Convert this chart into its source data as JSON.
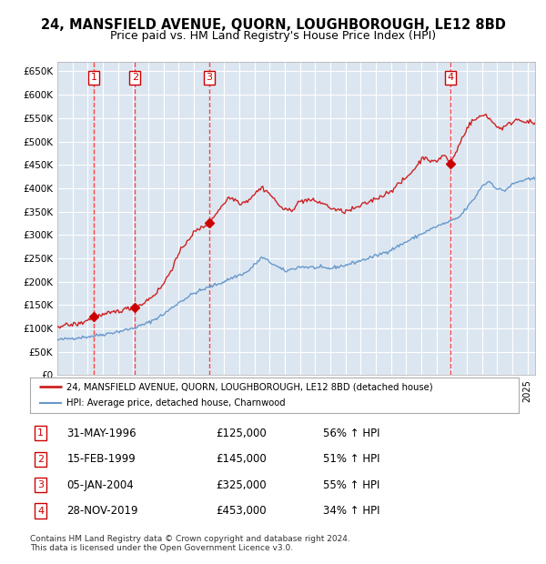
{
  "title": "24, MANSFIELD AVENUE, QUORN, LOUGHBOROUGH, LE12 8BD",
  "subtitle": "Price paid vs. HM Land Registry's House Price Index (HPI)",
  "ylim": [
    0,
    670000
  ],
  "yticks": [
    0,
    50000,
    100000,
    150000,
    200000,
    250000,
    300000,
    350000,
    400000,
    450000,
    500000,
    550000,
    600000,
    650000
  ],
  "ytick_labels": [
    "£0",
    "£50K",
    "£100K",
    "£150K",
    "£200K",
    "£250K",
    "£300K",
    "£350K",
    "£400K",
    "£450K",
    "£500K",
    "£550K",
    "£600K",
    "£650K"
  ],
  "plot_bg_color": "#dce6f1",
  "grid_color": "#ffffff",
  "hpi_color": "#6699cc",
  "price_color": "#cc2222",
  "sale_marker_color": "#cc0000",
  "vline_color": "#ff4444",
  "sales": [
    {
      "num": 1,
      "date": "1996-05-31",
      "price": 125000,
      "pct": "56%",
      "x": 1996.416
    },
    {
      "num": 2,
      "date": "1999-02-15",
      "price": 145000,
      "pct": "51%",
      "x": 1999.125
    },
    {
      "num": 3,
      "date": "2004-01-05",
      "price": 325000,
      "pct": "55%",
      "x": 2004.014
    },
    {
      "num": 4,
      "date": "2019-11-28",
      "price": 453000,
      "pct": "34%",
      "x": 2019.906
    }
  ],
  "legend_label_price": "24, MANSFIELD AVENUE, QUORN, LOUGHBOROUGH, LE12 8BD (detached house)",
  "legend_label_hpi": "HPI: Average price, detached house, Charnwood",
  "footnote": "Contains HM Land Registry data © Crown copyright and database right 2024.\nThis data is licensed under the Open Government Licence v3.0.",
  "xmin": 1994.0,
  "xmax": 2025.5,
  "hpi_anchors": [
    [
      1994.0,
      75000
    ],
    [
      1995.0,
      79000
    ],
    [
      1996.0,
      82000
    ],
    [
      1997.0,
      87000
    ],
    [
      1998.0,
      93000
    ],
    [
      1999.0,
      100000
    ],
    [
      2000.0,
      112000
    ],
    [
      2001.0,
      130000
    ],
    [
      2002.0,
      155000
    ],
    [
      2003.0,
      175000
    ],
    [
      2004.0,
      188000
    ],
    [
      2005.0,
      200000
    ],
    [
      2005.5,
      208000
    ],
    [
      2006.5,
      220000
    ],
    [
      2007.5,
      252000
    ],
    [
      2008.5,
      232000
    ],
    [
      2009.0,
      222000
    ],
    [
      2010.0,
      232000
    ],
    [
      2011.0,
      230000
    ],
    [
      2012.0,
      228000
    ],
    [
      2012.5,
      232000
    ],
    [
      2013.0,
      235000
    ],
    [
      2014.0,
      245000
    ],
    [
      2015.0,
      255000
    ],
    [
      2016.0,
      268000
    ],
    [
      2017.0,
      285000
    ],
    [
      2018.0,
      302000
    ],
    [
      2019.0,
      318000
    ],
    [
      2020.0,
      330000
    ],
    [
      2020.5,
      338000
    ],
    [
      2021.0,
      358000
    ],
    [
      2021.5,
      378000
    ],
    [
      2022.0,
      405000
    ],
    [
      2022.5,
      415000
    ],
    [
      2023.0,
      398000
    ],
    [
      2023.5,
      395000
    ],
    [
      2024.0,
      408000
    ],
    [
      2024.5,
      415000
    ],
    [
      2025.0,
      418000
    ],
    [
      2025.5,
      420000
    ]
  ],
  "price_anchors": [
    [
      1994.0,
      105000
    ],
    [
      1995.0,
      108000
    ],
    [
      1995.5,
      110000
    ],
    [
      1996.0,
      118000
    ],
    [
      1996.416,
      125000
    ],
    [
      1997.0,
      128000
    ],
    [
      1998.0,
      137000
    ],
    [
      1999.0,
      145000
    ],
    [
      1999.125,
      145000
    ],
    [
      1999.5,
      150000
    ],
    [
      2000.0,
      162000
    ],
    [
      2000.5,
      175000
    ],
    [
      2001.0,
      195000
    ],
    [
      2001.5,
      225000
    ],
    [
      2002.0,
      258000
    ],
    [
      2002.5,
      285000
    ],
    [
      2003.0,
      305000
    ],
    [
      2003.5,
      315000
    ],
    [
      2004.0,
      325000
    ],
    [
      2004.014,
      325000
    ],
    [
      2004.5,
      348000
    ],
    [
      2005.0,
      368000
    ],
    [
      2005.3,
      380000
    ],
    [
      2005.8,
      375000
    ],
    [
      2006.0,
      368000
    ],
    [
      2006.5,
      372000
    ],
    [
      2007.0,
      388000
    ],
    [
      2007.5,
      402000
    ],
    [
      2008.0,
      388000
    ],
    [
      2008.5,
      368000
    ],
    [
      2009.0,
      352000
    ],
    [
      2009.5,
      355000
    ],
    [
      2010.0,
      372000
    ],
    [
      2010.5,
      375000
    ],
    [
      2011.0,
      372000
    ],
    [
      2011.5,
      368000
    ],
    [
      2012.0,
      358000
    ],
    [
      2012.5,
      352000
    ],
    [
      2013.0,
      350000
    ],
    [
      2013.5,
      355000
    ],
    [
      2014.0,
      362000
    ],
    [
      2014.5,
      370000
    ],
    [
      2015.0,
      378000
    ],
    [
      2015.5,
      385000
    ],
    [
      2016.0,
      395000
    ],
    [
      2016.5,
      408000
    ],
    [
      2017.0,
      422000
    ],
    [
      2017.5,
      440000
    ],
    [
      2017.8,
      452000
    ],
    [
      2018.0,
      462000
    ],
    [
      2018.3,
      468000
    ],
    [
      2018.7,
      455000
    ],
    [
      2019.0,
      458000
    ],
    [
      2019.5,
      472000
    ],
    [
      2019.906,
      453000
    ],
    [
      2020.0,
      458000
    ],
    [
      2020.3,
      478000
    ],
    [
      2020.7,
      508000
    ],
    [
      2021.0,
      528000
    ],
    [
      2021.3,
      542000
    ],
    [
      2021.6,
      548000
    ],
    [
      2022.0,
      555000
    ],
    [
      2022.3,
      558000
    ],
    [
      2022.5,
      548000
    ],
    [
      2022.8,
      538000
    ],
    [
      2023.0,
      532000
    ],
    [
      2023.3,
      528000
    ],
    [
      2023.7,
      535000
    ],
    [
      2024.0,
      542000
    ],
    [
      2024.3,
      548000
    ],
    [
      2024.7,
      545000
    ],
    [
      2025.0,
      542000
    ],
    [
      2025.5,
      538000
    ]
  ]
}
